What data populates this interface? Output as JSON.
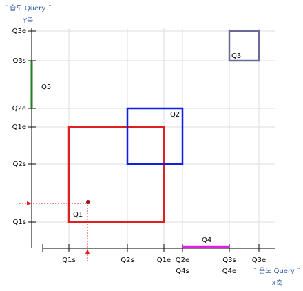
{
  "header": {
    "query": "˝ 습도 Query ˝",
    "axis": "Y축"
  },
  "y_labels": [
    "Q3e",
    "Q3s",
    "Q2e",
    "Q1e",
    "Q2s",
    "Q1s"
  ],
  "x_labels": [
    "Q1s",
    "Q2s",
    "Q1e",
    "Q2e",
    "Q3s",
    "Q3e"
  ],
  "x_labels_second": [
    "Q4s",
    "Q4e"
  ],
  "footer": {
    "query": "˝ 온도 Query ˝",
    "axis": "X축"
  },
  "boxes": [
    "Q1",
    "Q2",
    "Q3",
    "Q4",
    "Q5"
  ]
}
